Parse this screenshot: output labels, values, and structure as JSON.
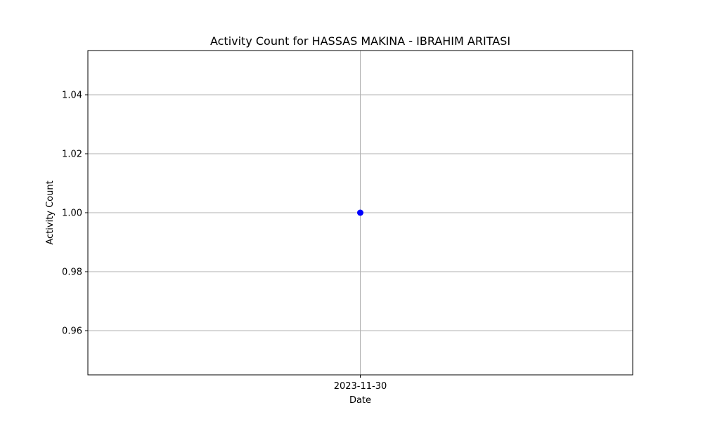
{
  "chart_data": {
    "type": "line",
    "title": "Activity Count for HASSAS MAKINA - IBRAHIM ARITASI",
    "xlabel": "Date",
    "ylabel": "Activity Count",
    "x": [
      "2023-11-30"
    ],
    "x_tick_labels": [
      "2023-11-30"
    ],
    "series": [
      {
        "values": [
          1.0
        ],
        "color": "#0000ff",
        "marker": "circle"
      }
    ],
    "ylim": [
      0.945,
      1.055
    ],
    "y_ticks": [
      0.96,
      0.98,
      1.0,
      1.02,
      1.04
    ],
    "y_tick_labels": [
      "0.96",
      "0.98",
      "1.00",
      "1.02",
      "1.04"
    ],
    "grid": true,
    "legend": "none"
  }
}
